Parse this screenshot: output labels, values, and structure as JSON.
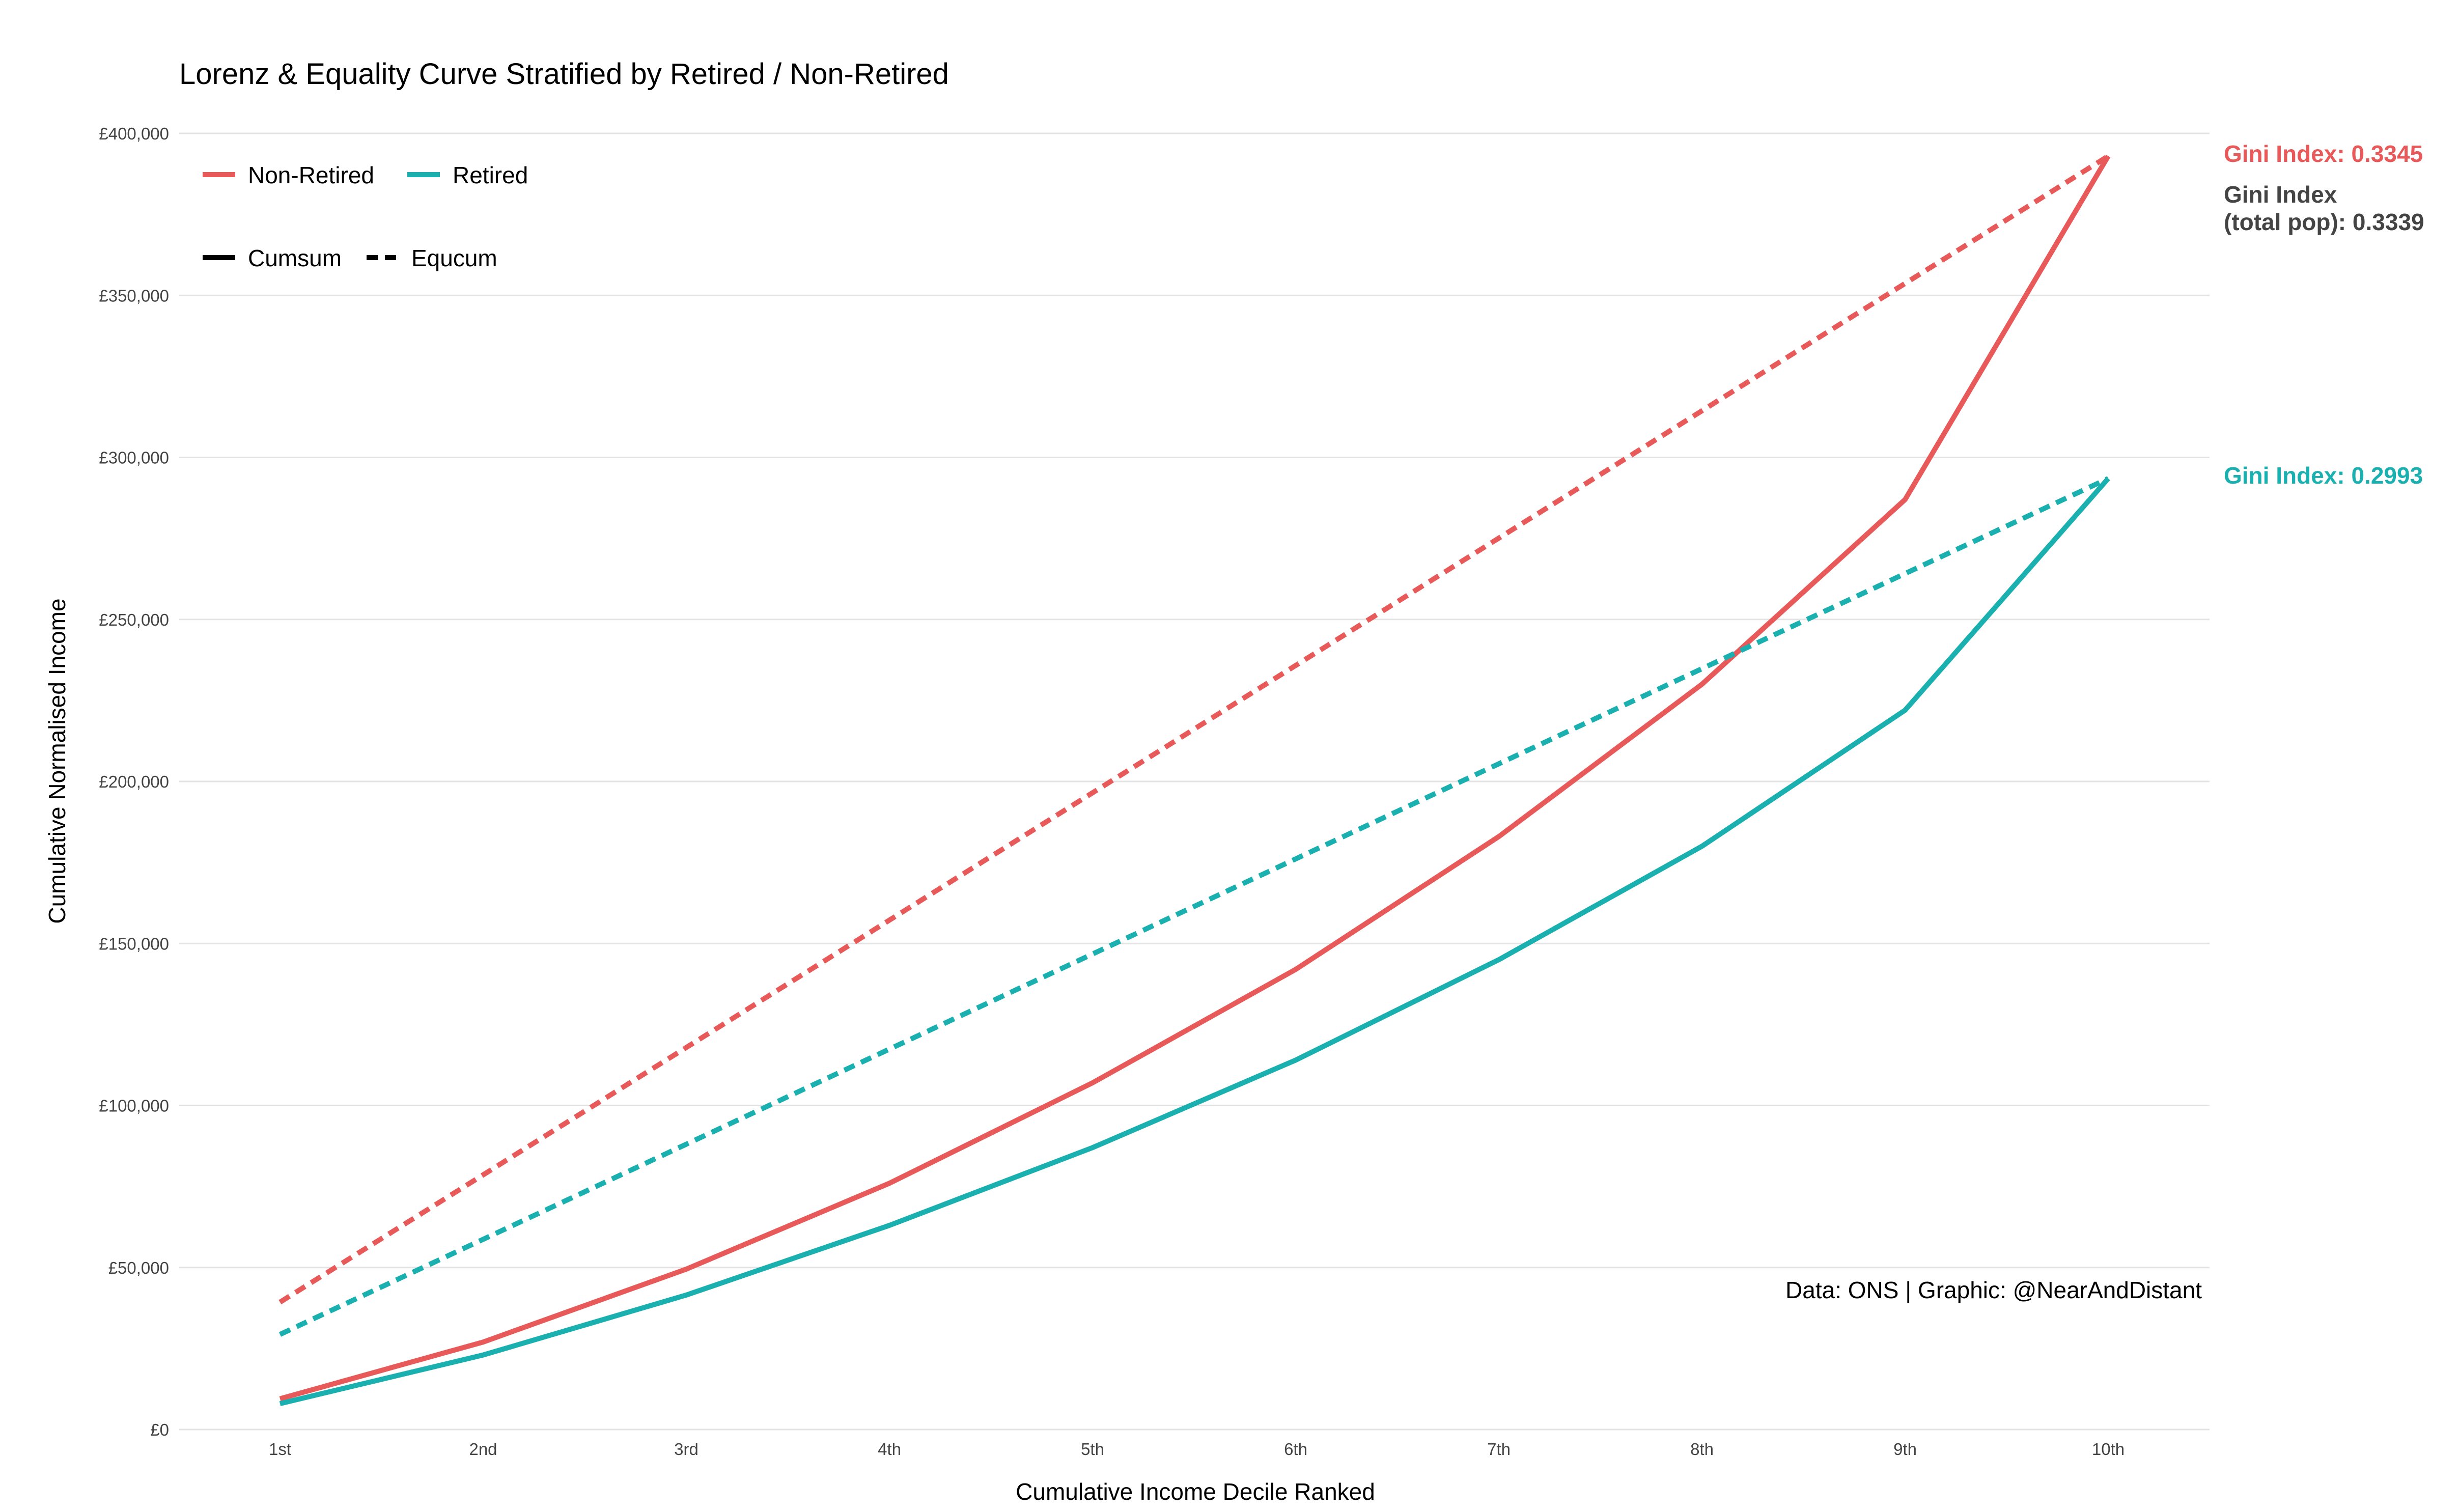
{
  "chart_data": {
    "type": "line",
    "title": "Lorenz & Equality Curve Stratified by Retired / Non-Retired",
    "xlabel": "Cumulative Income Decile Ranked",
    "ylabel": "Cumulative Normalised Income",
    "categories": [
      "1st",
      "2nd",
      "3rd",
      "4th",
      "5th",
      "6th",
      "7th",
      "8th",
      "9th",
      "10th"
    ],
    "ylim": [
      0,
      400000
    ],
    "yticks": [
      0,
      50000,
      100000,
      150000,
      200000,
      250000,
      300000,
      350000,
      400000
    ],
    "ytick_labels": [
      "£0",
      "£50,000",
      "£100,000",
      "£150,000",
      "£200,000",
      "£250,000",
      "£300,000",
      "£350,000",
      "£400,000"
    ],
    "grid": "horizontal",
    "legend": {
      "placement": "top-left",
      "groups": [
        "Non-Retired",
        "Retired"
      ],
      "types": [
        "Cumsum",
        "Equcum"
      ]
    },
    "series": [
      {
        "name": "Non-Retired",
        "type": "Cumsum",
        "color": "#e85a5a",
        "dash": "solid",
        "values": [
          9500,
          27000,
          49500,
          76000,
          107000,
          142000,
          183000,
          230000,
          287000,
          393000
        ]
      },
      {
        "name": "Non-Retired",
        "type": "Equcum",
        "color": "#e85a5a",
        "dash": "dashed",
        "values": [
          39300,
          78600,
          117900,
          157200,
          196500,
          235800,
          275100,
          314400,
          353700,
          393000
        ]
      },
      {
        "name": "Retired",
        "type": "Cumsum",
        "color": "#1ab0b0",
        "dash": "solid",
        "values": [
          8000,
          23000,
          41500,
          63000,
          87000,
          114000,
          145000,
          180000,
          222000,
          293500
        ]
      },
      {
        "name": "Retired",
        "type": "Equcum",
        "color": "#1ab0b0",
        "dash": "dashed",
        "values": [
          29350,
          58700,
          88050,
          117400,
          146750,
          176100,
          205450,
          234800,
          264150,
          293500
        ]
      }
    ],
    "annotations": [
      {
        "text": "Gini Index: 0.3345",
        "color": "#e85a5a",
        "y": 393000
      },
      {
        "text": "Gini Index",
        "text2": "(total pop): 0.3339",
        "color": "#444444"
      },
      {
        "text": "Gini Index: 0.2993",
        "color": "#1ab0b0",
        "y": 293500
      }
    ],
    "caption": "Data: ONS | Graphic: @NearAndDistant"
  }
}
